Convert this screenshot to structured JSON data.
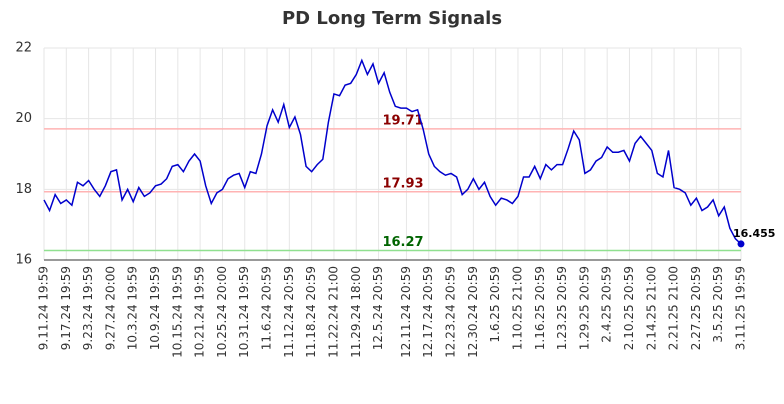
{
  "chart_data": {
    "type": "line",
    "title": "PD Long Term Signals",
    "categories": [
      "9.11.24 19:59",
      null,
      null,
      null,
      "9.17.24 19:59",
      null,
      null,
      null,
      "9.23.24 19:59",
      null,
      null,
      null,
      "9.27.24 20:00",
      null,
      null,
      null,
      "10.3.24 19:59",
      null,
      null,
      null,
      "10.9.24 19:59",
      null,
      null,
      null,
      "10.15.24 19:59",
      null,
      null,
      null,
      "10.21.24 19:59",
      null,
      null,
      null,
      "10.25.24 20:00",
      null,
      null,
      null,
      "10.31.24 19:59",
      null,
      null,
      null,
      "11.6.24 20:59",
      null,
      null,
      null,
      "11.12.24 20:59",
      null,
      null,
      null,
      "11.18.24 20:59",
      null,
      null,
      null,
      "11.22.24 21:00",
      null,
      null,
      null,
      "11.29.24 18:00",
      null,
      null,
      null,
      "12.5.24 20:59",
      null,
      null,
      null,
      null,
      "12.11.24 20:59",
      null,
      null,
      null,
      "12.17.24 20:59",
      null,
      null,
      null,
      "12.23.24 20:59",
      null,
      null,
      null,
      "12.30.24 20:59",
      null,
      null,
      null,
      "1.6.25 20:59",
      null,
      null,
      null,
      "1.10.25 21:00",
      null,
      null,
      null,
      "1.16.25 20:59",
      null,
      null,
      null,
      "1.23.25 20:59",
      null,
      null,
      null,
      "1.29.25 20:59",
      null,
      null,
      null,
      "2.4.25 20:59",
      null,
      null,
      null,
      "2.10.25 20:59",
      null,
      null,
      null,
      "2.14.25 21:00",
      null,
      null,
      null,
      "2.21.25 21:00",
      null,
      null,
      null,
      "2.27.25 20:59",
      null,
      null,
      null,
      "3.5.25 20:59",
      null,
      null,
      null,
      "3.11.25 19:59"
    ],
    "values": [
      17.7,
      17.4,
      17.85,
      17.6,
      17.7,
      17.55,
      18.2,
      18.1,
      18.25,
      18.0,
      17.8,
      18.1,
      18.5,
      18.55,
      17.7,
      18.0,
      17.65,
      18.05,
      17.8,
      17.9,
      18.1,
      18.15,
      18.3,
      18.65,
      18.7,
      18.5,
      18.8,
      19.0,
      18.8,
      18.1,
      17.6,
      17.9,
      18.0,
      18.3,
      18.4,
      18.45,
      18.05,
      18.5,
      18.45,
      19.0,
      19.8,
      20.25,
      19.9,
      20.4,
      19.75,
      20.05,
      19.55,
      18.65,
      18.5,
      18.7,
      18.85,
      19.9,
      20.7,
      20.65,
      20.95,
      21.0,
      21.25,
      21.65,
      21.25,
      21.55,
      21.0,
      21.3,
      20.75,
      20.35,
      20.3,
      20.3,
      20.2,
      20.25,
      19.7,
      19.0,
      18.65,
      18.5,
      18.4,
      18.45,
      18.35,
      17.85,
      18.0,
      18.3,
      18.0,
      18.2,
      17.8,
      17.55,
      17.75,
      17.7,
      17.6,
      17.8,
      18.35,
      18.35,
      18.65,
      18.3,
      18.7,
      18.55,
      18.7,
      18.7,
      19.15,
      19.65,
      19.4,
      18.45,
      18.55,
      18.8,
      18.9,
      19.2,
      19.05,
      19.05,
      19.1,
      18.8,
      19.3,
      19.5,
      19.3,
      19.1,
      18.45,
      18.35,
      19.1,
      18.05,
      18.0,
      17.9,
      17.55,
      17.75,
      17.4,
      17.5,
      17.7,
      17.25,
      17.5,
      16.9,
      16.6,
      16.455
    ],
    "color": "#0000cc",
    "ylim": [
      16,
      22
    ],
    "yticks": [
      16,
      18,
      20,
      22
    ],
    "grid": true,
    "hlines": [
      {
        "value": 19.71,
        "color": "#ffb3b3",
        "label_color": "#8b0000"
      },
      {
        "value": 17.93,
        "color": "#ffb3b3",
        "label_color": "#8b0000"
      },
      {
        "value": 16.27,
        "color": "#90e090",
        "label_color": "#006400"
      }
    ]
  }
}
